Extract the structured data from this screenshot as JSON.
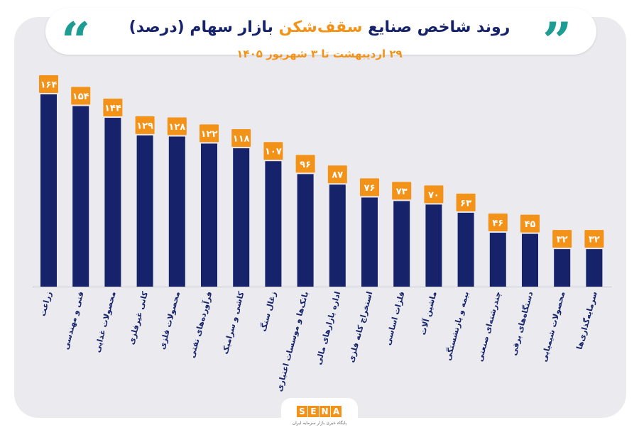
{
  "header": {
    "title_part1": "روند شاخص صنایع ",
    "title_highlight": "سقف‌شکن",
    "title_part2": " بازار سهام (درصد)",
    "subtitle": "۲۹ اردیبهشت تا ۳ شهریور ۱۴۰۵"
  },
  "logo": {
    "letters": [
      "S",
      "E",
      "N",
      "A"
    ],
    "tagline": "پایگاه خبری بازار سرمایه ایران"
  },
  "colors": {
    "bar": "#16236b",
    "label_box": "#f39219",
    "accent": "#1c9c92",
    "panel": "#ebebef"
  },
  "chart_data": {
    "type": "bar",
    "categories": [
      "زراعت",
      "فنی و مهندسی",
      "محصولات غذایی",
      "کانی غیرفلزی",
      "محصولات فلزی",
      "فرآورده‌های نفتی",
      "کاشی و سرامیک",
      "زغال سنگ",
      "بانک‌ها و موسسات اعتباری",
      "اداره بازارهای مالی",
      "استخراج کانه فلزی",
      "فلزات اساسی",
      "ماشین آلات",
      "بیمه و بازنشستگی",
      "چندرشته‌ای صنعتی",
      "دستگاه‌های برقی",
      "محصولات شیمیایی",
      "سرمایه‌گذاری‌ها"
    ],
    "values": [
      164,
      154,
      144,
      129,
      128,
      122,
      118,
      107,
      96,
      87,
      76,
      73,
      70,
      63,
      46,
      45,
      32,
      32
    ],
    "value_labels": [
      "۱۶۴",
      "۱۵۴",
      "۱۴۴",
      "۱۲۹",
      "۱۲۸",
      "۱۲۲",
      "۱۱۸",
      "۱۰۷",
      "۹۶",
      "۸۷",
      "۷۶",
      "۷۳",
      "۷۰",
      "۶۳",
      "۴۶",
      "۴۵",
      "۳۲",
      "۳۲"
    ],
    "ylim": [
      0,
      164
    ],
    "grid": false,
    "legend": "none"
  }
}
